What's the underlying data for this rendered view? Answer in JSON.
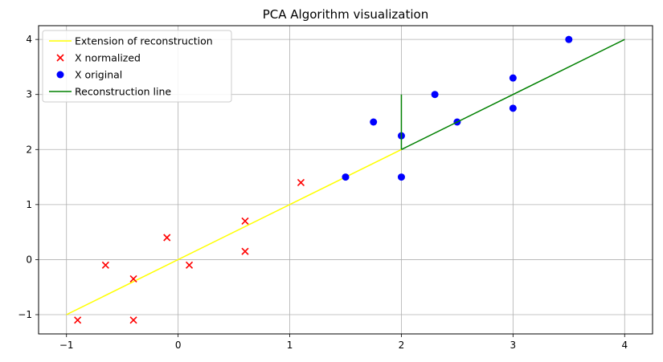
{
  "chart_data": {
    "type": "scatter",
    "title": "PCA Algorithm visualization",
    "xlabel": "",
    "ylabel": "",
    "xlim": [
      -1.25,
      4.25
    ],
    "ylim": [
      -1.35,
      4.25
    ],
    "x_ticks": [
      -1,
      0,
      1,
      2,
      3,
      4
    ],
    "y_ticks": [
      -1,
      0,
      1,
      2,
      3,
      4
    ],
    "x_tick_labels": [
      "−1",
      "0",
      "1",
      "2",
      "3",
      "4"
    ],
    "y_tick_labels": [
      "−1",
      "0",
      "1",
      "2",
      "3",
      "4"
    ],
    "grid": true,
    "legend_position": "top-left",
    "series": [
      {
        "name": "Extension of reconstruction",
        "kind": "line",
        "color": "#ffff00",
        "points": [
          [
            -1,
            -1
          ],
          [
            2,
            2
          ]
        ]
      },
      {
        "name": "X normalized",
        "kind": "scatter",
        "marker": "x",
        "color": "#ff0000",
        "points": [
          [
            -0.9,
            -1.1
          ],
          [
            -0.65,
            -0.1
          ],
          [
            -0.4,
            -0.35
          ],
          [
            -0.4,
            -1.1
          ],
          [
            -0.1,
            0.4
          ],
          [
            0.1,
            -0.1
          ],
          [
            0.6,
            0.7
          ],
          [
            0.6,
            0.15
          ],
          [
            1.1,
            1.4
          ]
        ]
      },
      {
        "name": "X original",
        "kind": "scatter",
        "marker": "o",
        "color": "#0000ff",
        "points": [
          [
            1.5,
            1.5
          ],
          [
            1.75,
            2.5
          ],
          [
            2.0,
            2.25
          ],
          [
            2.0,
            1.5
          ],
          [
            2.3,
            3.0
          ],
          [
            2.5,
            2.5
          ],
          [
            3.0,
            3.3
          ],
          [
            3.0,
            2.75
          ],
          [
            3.5,
            4.0
          ]
        ]
      },
      {
        "name": "Reconstruction line",
        "kind": "line",
        "color": "#008000",
        "segments": [
          [
            [
              2,
              2
            ],
            [
              4,
              4
            ]
          ],
          [
            [
              2,
              2
            ],
            [
              2,
              3
            ]
          ]
        ]
      }
    ]
  }
}
